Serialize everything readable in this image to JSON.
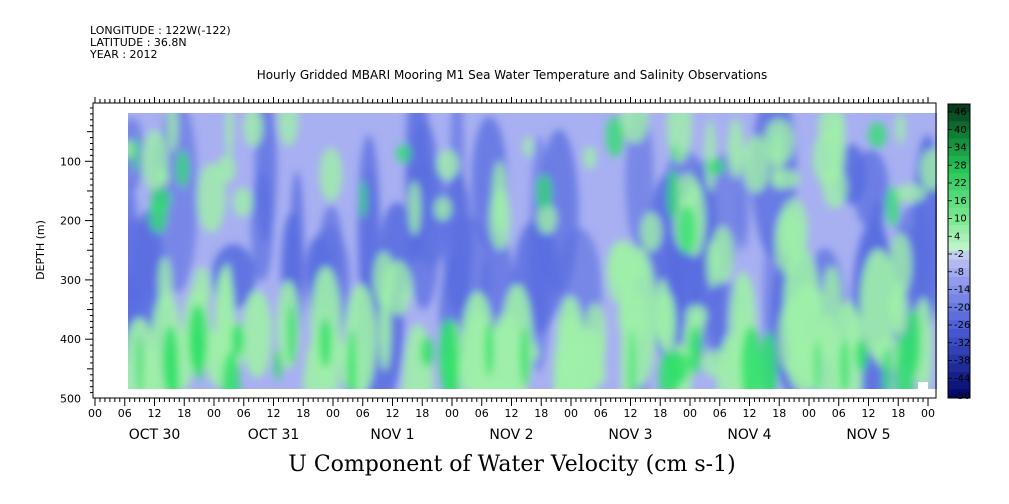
{
  "header": {
    "longitude": "LONGITUDE : 122W(-122)",
    "latitude": "LATITUDE : 36.8N",
    "year": "YEAR : 2012"
  },
  "title": "Hourly Gridded MBARI Mooring M1 Sea Water Temperature and Salinity Observations",
  "footer_label": "U Component of Water Velocity (cm s-1)",
  "colors": {
    "strong_negative": "#0a1a8c",
    "mid_negative": "#5a6ee0",
    "weak_negative": "#a8b0f2",
    "weak_positive": "#9ff0a8",
    "mid_positive": "#2ee06a",
    "strong_positive": "#0a5a2a"
  },
  "chart_data": {
    "type": "heatmap",
    "title": "Hourly Gridded MBARI Mooring M1 Sea Water Temperature and Salinity Observations",
    "ylabel": "DEPTH (m)",
    "xlabel": "",
    "y_ticks": [
      100,
      200,
      300,
      400,
      500
    ],
    "ylim": [
      0,
      500
    ],
    "y_inverted": true,
    "data_depth_range": [
      20,
      490
    ],
    "x_hour_ticks": [
      "00",
      "06",
      "12",
      "18",
      "00",
      "06",
      "12",
      "18",
      "00",
      "06",
      "12",
      "18",
      "00",
      "06",
      "12",
      "18",
      "00",
      "06",
      "12",
      "18",
      "00",
      "06",
      "12",
      "18",
      "00",
      "06",
      "12",
      "18",
      "00"
    ],
    "x_date_labels": [
      "OCT 30",
      "OCT 31",
      "NOV  1",
      "NOV  2",
      "NOV  3",
      "NOV  4",
      "NOV  5"
    ],
    "data_time_range": [
      "OCT 30 06",
      "NOV 5 22"
    ],
    "colorbar": {
      "labels": [
        "46",
        "40",
        "34",
        "28",
        "22",
        "16",
        "10",
        "4",
        "-2",
        "-8",
        "-14",
        "-20",
        "-26",
        "-32",
        "-38",
        "-44",
        "-50"
      ],
      "range": [
        -50,
        50
      ]
    },
    "grid": false,
    "legend": "colorbar-right"
  }
}
